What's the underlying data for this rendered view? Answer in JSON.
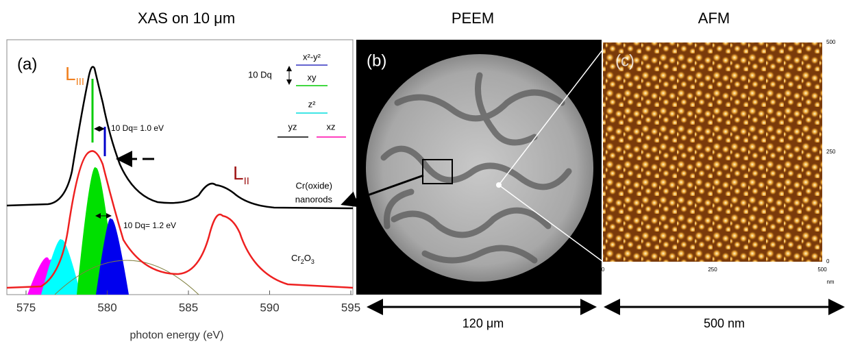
{
  "titles": {
    "xas": "XAS on 10 μm",
    "peem": "PEEM",
    "afm": "AFM"
  },
  "xas": {
    "panel": "(a)",
    "l3": {
      "letter": "L",
      "sub": "III"
    },
    "l2": {
      "letter": "L",
      "sub": "II"
    },
    "levels": {
      "dq": "10 Dq",
      "x2y2": "x²-y²",
      "xy": "xy",
      "z2": "z²",
      "yz": "yz",
      "xz": "xz"
    },
    "dq_nanorods": "10 Dq= 1.0 eV",
    "dq_cr2o3": "10 Dq= 1.2 eV",
    "nanorods": [
      "Cr(oxide)",
      "nanorods"
    ],
    "cr2o3": [
      "Cr",
      "2",
      "O",
      "3"
    ],
    "x_ticks": [
      "575",
      "580",
      "585",
      "590",
      "595"
    ],
    "x_label": "photon energy (eV)"
  },
  "peem": {
    "panel": "(b)",
    "scale": "120 μm"
  },
  "afm": {
    "panel": "(c)",
    "y_ticks": [
      "500",
      "250",
      "0"
    ],
    "x_ticks": [
      "0",
      "250",
      "500"
    ],
    "unit": "nm",
    "scale": "500 nm"
  }
}
